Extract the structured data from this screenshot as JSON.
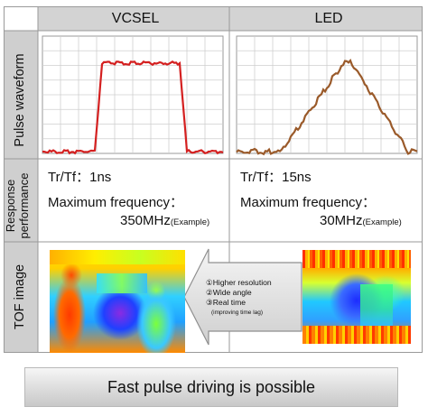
{
  "columns": {
    "vcsel": "VCSEL",
    "led": "LED"
  },
  "rows": {
    "pulse": "Pulse waveform",
    "response_line1": "Response",
    "response_line2": "performance",
    "tof": "TOF image"
  },
  "vcsel": {
    "trtf": "Tr/Tf：1ns",
    "maxfreq_label": "Maximum frequency：",
    "maxfreq_value": "350MHz",
    "maxfreq_note": "(Example)",
    "waveform_color": "#d42020"
  },
  "led": {
    "trtf": "Tr/Tf：15ns",
    "maxfreq_label": "Maximum frequency：",
    "maxfreq_value": "30MHz",
    "maxfreq_note": "(Example)",
    "waveform_color": "#9a5a2a"
  },
  "callout": {
    "line1": "①Higher resolution",
    "line2": "②Wide angle",
    "line3": "③Real time",
    "line4": "(improving time lag)"
  },
  "banner": "Fast pulse driving is possible"
}
